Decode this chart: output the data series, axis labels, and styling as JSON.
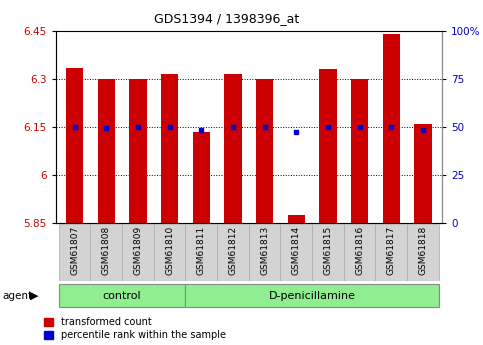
{
  "title": "GDS1394 / 1398396_at",
  "samples": [
    "GSM61807",
    "GSM61808",
    "GSM61809",
    "GSM61810",
    "GSM61811",
    "GSM61812",
    "GSM61813",
    "GSM61814",
    "GSM61815",
    "GSM61816",
    "GSM61817",
    "GSM61818"
  ],
  "red_values": [
    6.335,
    6.3,
    6.3,
    6.315,
    6.135,
    6.315,
    6.3,
    5.875,
    6.33,
    6.3,
    6.44,
    6.16
  ],
  "blue_values": [
    6.15,
    6.145,
    6.15,
    6.15,
    6.14,
    6.15,
    6.15,
    6.135,
    6.15,
    6.15,
    6.15,
    6.14
  ],
  "ylim_left": [
    5.85,
    6.45
  ],
  "ylim_right": [
    0,
    100
  ],
  "yticks_left": [
    5.85,
    6.0,
    6.15,
    6.3,
    6.45
  ],
  "yticks_right": [
    0,
    25,
    50,
    75,
    100
  ],
  "bar_color": "#CC0000",
  "dot_color": "#0000CC",
  "bar_width": 0.55,
  "base_value": 5.85,
  "bg_color": "#FFFFFF",
  "tick_label_color_left": "#CC0000",
  "tick_label_color_right": "#0000CC",
  "control_indices": [
    0,
    1,
    2,
    3
  ],
  "dpenicillamine_indices": [
    4,
    5,
    6,
    7,
    8,
    9,
    10,
    11
  ],
  "group_color": "#90EE90",
  "xtick_bg": "#D3D3D3"
}
